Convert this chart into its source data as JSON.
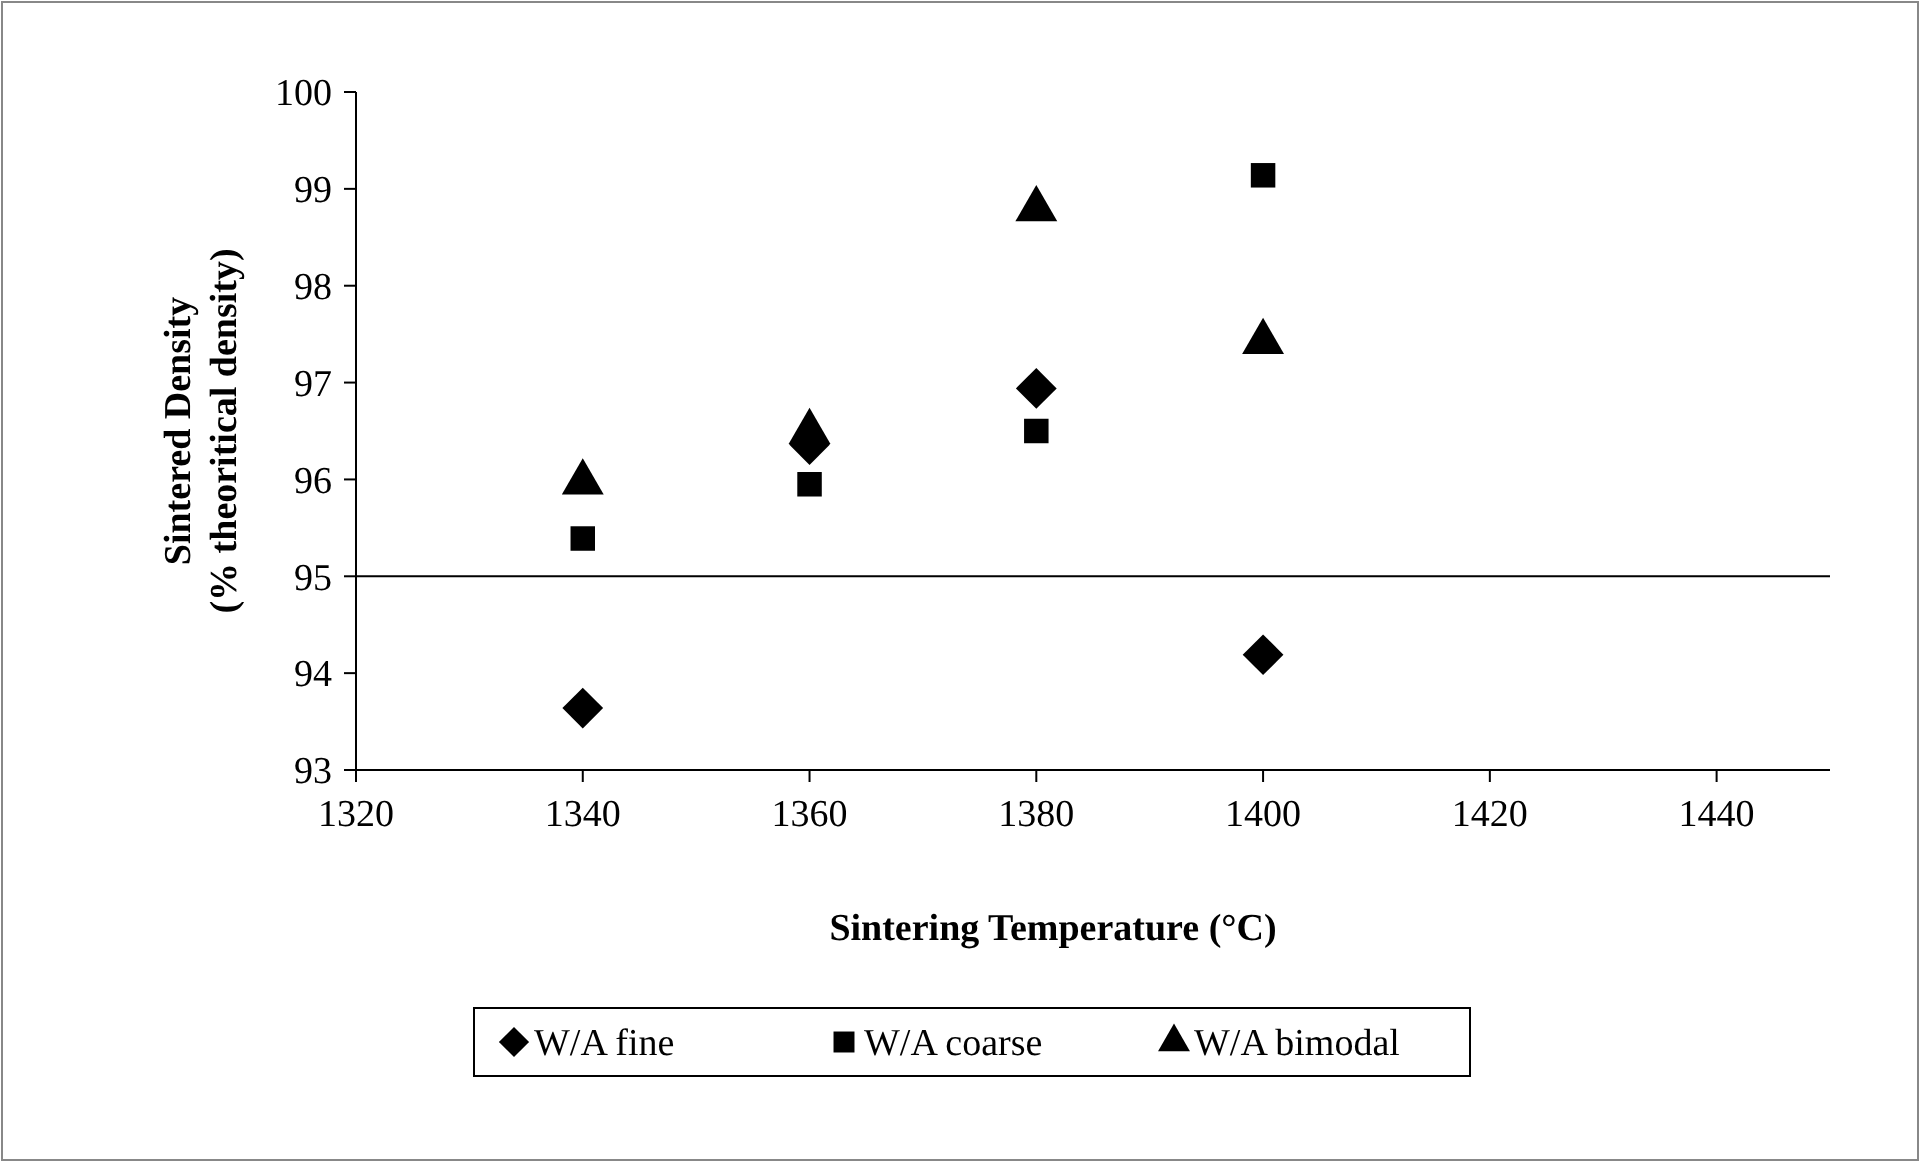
{
  "chart_data": {
    "type": "scatter",
    "xlabel": "Sintering Temperature (°C)",
    "ylabel": "Sintered Density\n(% theoritical density)",
    "x": [
      1340,
      1360,
      1380,
      1400
    ],
    "series": [
      {
        "name": "W/A fine",
        "color": "#000000",
        "marker": "diamond",
        "values": [
          93.64,
          96.36,
          96.94,
          94.19
        ]
      },
      {
        "name": "W/A coarse",
        "color": "#000000",
        "marker": "square",
        "values": [
          95.39,
          95.95,
          96.5,
          99.14
        ]
      },
      {
        "name": "W/A bimodal",
        "color": "#000000",
        "marker": "triangle",
        "values": [
          95.97,
          96.49,
          98.79,
          97.42
        ]
      }
    ],
    "xlim": [
      1320,
      1450
    ],
    "xticks": [
      1320,
      1340,
      1360,
      1380,
      1400,
      1420,
      1440
    ],
    "ylim": [
      93,
      100
    ],
    "yticks": [
      93,
      94,
      95,
      96,
      97,
      98,
      99,
      100
    ],
    "ref_lines": [
      {
        "axis": "y",
        "value": 95,
        "color": "#000000"
      }
    ],
    "grid": false,
    "legend": "bottom"
  }
}
